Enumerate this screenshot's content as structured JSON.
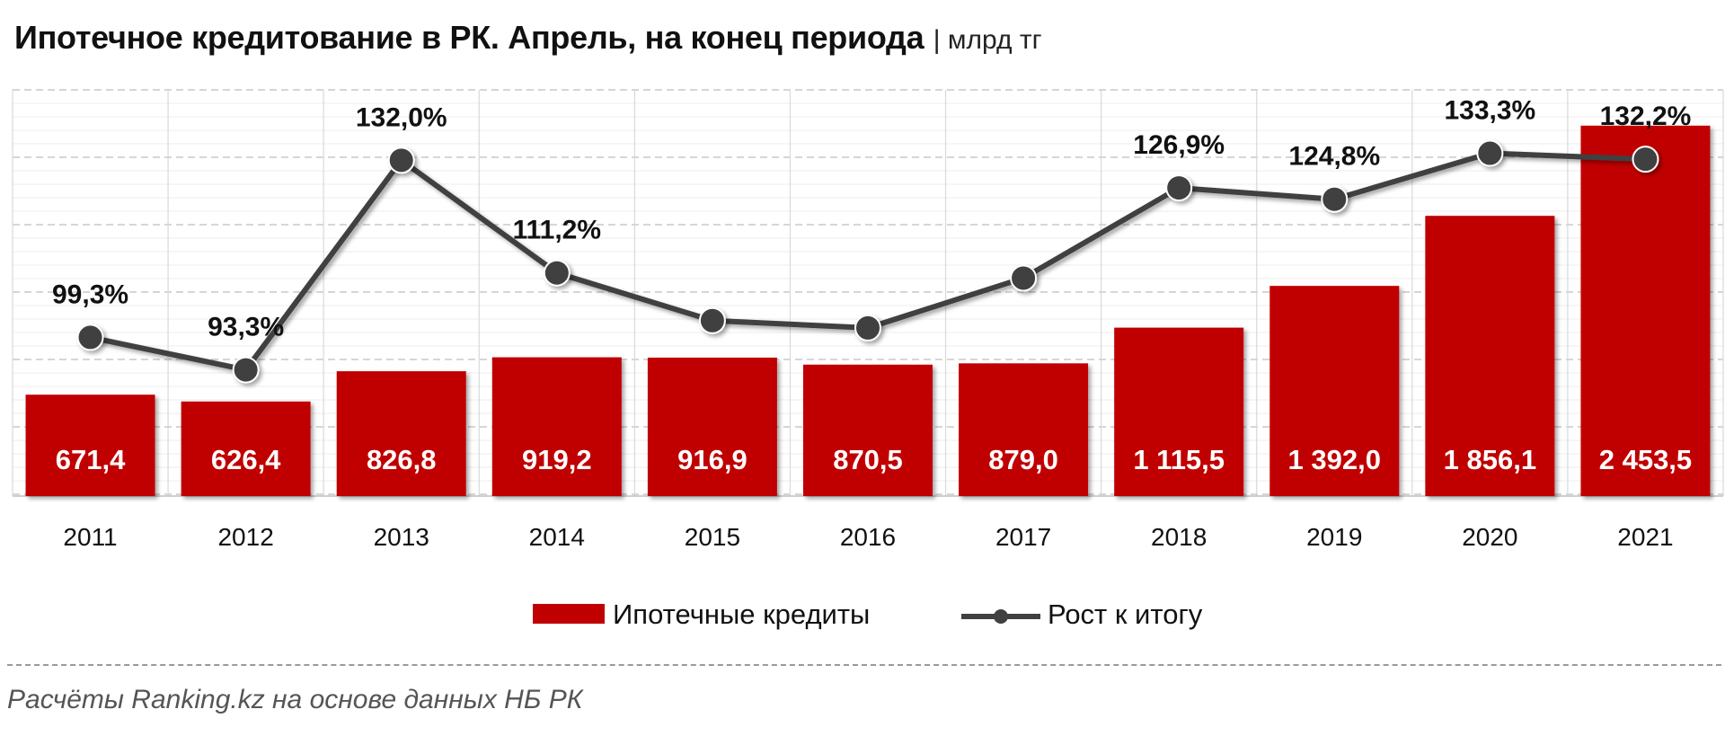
{
  "title": "Ипотечное кредитование в РК. Апрель, на конец периода",
  "unit": "| млрд тг",
  "source": "Расчёты Ranking.kz на основе данных  НБ РК",
  "colors": {
    "bar": "#c00000",
    "line": "#404040",
    "grid": "#d9d9d9"
  },
  "chart_data": {
    "type": "bar",
    "title": "Ипотечное кредитование в РК. Апрель, на конец периода",
    "ylabel": "млрд тг",
    "ylim": [
      0,
      2500
    ],
    "categories": [
      "2011",
      "2012",
      "2013",
      "2014",
      "2015",
      "2016",
      "2017",
      "2018",
      "2019",
      "2020",
      "2021"
    ],
    "series": [
      {
        "name": "Ипотечные кредиты",
        "type": "bar",
        "values": [
          671.4,
          626.4,
          826.8,
          919.2,
          916.9,
          870.5,
          879.0,
          1115.5,
          1392.0,
          1856.1,
          2453.5
        ],
        "labels": [
          "671,4",
          "626,4",
          "826,8",
          "919,2",
          "916,9",
          "870,5",
          "879,0",
          "1 115,5",
          "1 392,0",
          "1 856,1",
          "2 453,5"
        ]
      },
      {
        "name": "Рост к итогу",
        "type": "line",
        "axis": "secondary",
        "values": [
          99.3,
          93.3,
          132.0,
          111.2,
          null,
          null,
          null,
          126.9,
          124.8,
          133.3,
          132.2
        ],
        "labels": [
          "99,3%",
          "93,3%",
          "132,0%",
          "111,2%",
          "",
          "",
          "",
          "126,9%",
          "124,8%",
          "133,3%",
          "132,2%"
        ]
      }
    ]
  }
}
